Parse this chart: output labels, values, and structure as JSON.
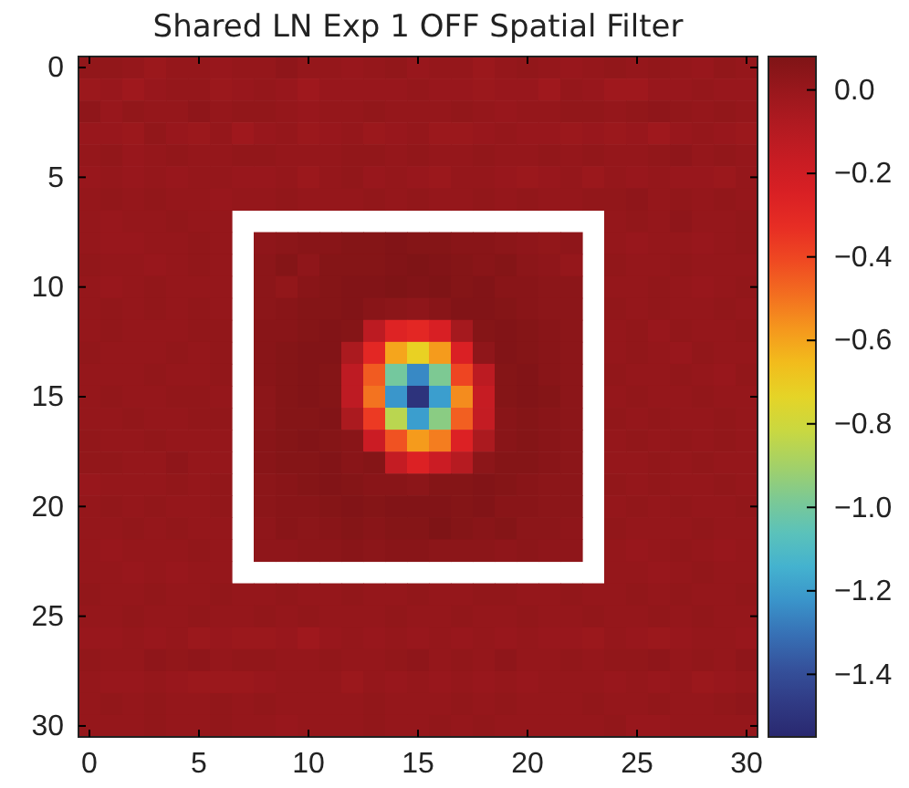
{
  "chart_data": {
    "type": "heatmap",
    "title": "Shared LN Exp 1 OFF Spatial Filter",
    "categories": [
      "0",
      null,
      null,
      null,
      null,
      "5",
      null,
      null,
      null,
      null,
      "10",
      null,
      null,
      null,
      null,
      "15",
      null,
      null,
      null,
      null,
      "20",
      null,
      null,
      null,
      null,
      "25",
      null,
      null,
      null,
      null,
      "30"
    ],
    "y_categories": [
      "0",
      null,
      null,
      null,
      null,
      "5",
      null,
      null,
      null,
      null,
      "10",
      null,
      null,
      null,
      null,
      "15",
      null,
      null,
      null,
      null,
      "20",
      null,
      null,
      null,
      null,
      "25",
      null,
      null,
      null,
      null,
      "30"
    ],
    "clim": [
      -1.55,
      0.08
    ],
    "cticks": [
      {
        "value": 0,
        "label": "0.0"
      },
      {
        "value": -0.2,
        "label": "−0.2"
      },
      {
        "value": -0.4,
        "label": "−0.4"
      },
      {
        "value": -0.6,
        "label": "−0.6"
      },
      {
        "value": -0.8,
        "label": "−0.8"
      },
      {
        "value": -1.0,
        "label": "−1.0"
      },
      {
        "value": -1.2,
        "label": "−1.2"
      },
      {
        "value": -1.4,
        "label": "−1.4"
      }
    ],
    "cells": [
      [
        0.02,
        0.02,
        0.01,
        -0.01,
        0.01,
        0.01,
        0,
        0.01,
        0.01,
        0.03,
        0.01,
        0.01,
        0,
        0.01,
        0.02,
        0,
        0.01,
        0.01,
        -0.01,
        0.01,
        0.02,
        0.01,
        0,
        0.01,
        0.02,
        0.01,
        0.02,
        0.01,
        0,
        0.02,
        0.01
      ],
      [
        -0.01,
        0,
        -0.02,
        0,
        0.01,
        0.01,
        -0.01,
        0,
        0.01,
        0,
        -0.02,
        0,
        0,
        0,
        0,
        0.01,
        0,
        0,
        -0.01,
        0,
        0,
        -0.02,
        0.01,
        0,
        -0.02,
        -0.02,
        0,
        0,
        0.01,
        0,
        0
      ],
      [
        0.03,
        0,
        0.02,
        0.01,
        0.01,
        0.03,
        0.01,
        0.02,
        0.02,
        0.01,
        0,
        0.01,
        0.01,
        0.02,
        0.01,
        0.01,
        0.01,
        0.02,
        0.01,
        0,
        0.01,
        0.01,
        0.02,
        0.02,
        0.01,
        0.02,
        0.03,
        0.02,
        0.01,
        0.02,
        0.01
      ],
      [
        0,
        0,
        -0.01,
        0.02,
        0,
        -0.01,
        0.01,
        -0.02,
        0,
        0.01,
        -0.01,
        0,
        0.01,
        -0.01,
        0,
        0.01,
        -0.01,
        -0.01,
        0,
        0.01,
        0,
        0,
        -0.01,
        0,
        -0.01,
        0,
        -0.02,
        0,
        0.01,
        0,
        -0.01
      ],
      [
        0.01,
        0.02,
        0,
        0.01,
        0.02,
        0.01,
        0.01,
        0.02,
        0.02,
        0.01,
        0.01,
        0.01,
        0.02,
        0.02,
        0.01,
        0.02,
        0.01,
        0.01,
        0.02,
        0.01,
        0.01,
        0.02,
        0.01,
        0.02,
        0.01,
        0.01,
        0.02,
        0.03,
        0.01,
        0.02,
        0.01
      ],
      [
        0,
        0.01,
        0,
        0.01,
        0,
        0.01,
        0.01,
        0,
        0,
        0.01,
        -0.01,
        0.01,
        0.02,
        0,
        0.01,
        0,
        -0.01,
        0.01,
        0.01,
        0,
        -0.01,
        0,
        0.01,
        -0.01,
        0.01,
        0,
        0.01,
        0,
        0,
        -0.01,
        0.01
      ],
      [
        0.01,
        0.02,
        0.01,
        0.02,
        0.01,
        0.01,
        0,
        0.01,
        0.01,
        0.02,
        0.01,
        0.01,
        0.01,
        0.02,
        0.01,
        0.02,
        0.01,
        0.01,
        0.02,
        0.01,
        0.02,
        0.01,
        0.01,
        0.02,
        0.02,
        0.03,
        0.01,
        0.02,
        0.01,
        0.02,
        0.01
      ],
      [
        0.01,
        0,
        0.01,
        0.01,
        0.02,
        0.01,
        0.01,
        null,
        null,
        null,
        null,
        null,
        null,
        null,
        null,
        null,
        null,
        null,
        null,
        null,
        null,
        null,
        null,
        null,
        0.01,
        0.02,
        0.01,
        0.03,
        0.01,
        0.01,
        0.02
      ],
      [
        0.01,
        0,
        0,
        0.01,
        0.01,
        0.02,
        0.01,
        null,
        0.03,
        0.04,
        0.05,
        0.05,
        0.06,
        0.06,
        0.07,
        0.06,
        0.06,
        0.05,
        0.05,
        0.04,
        0.03,
        0.02,
        0.03,
        null,
        0.01,
        0,
        0.01,
        0.01,
        0,
        0.01,
        0.02
      ],
      [
        0.02,
        0.01,
        0.01,
        0,
        0.01,
        0.02,
        0.01,
        null,
        0.04,
        0.06,
        0.03,
        0.06,
        0.06,
        0.06,
        0.07,
        0.08,
        0.07,
        0.06,
        0.05,
        0.06,
        0.04,
        0.03,
        0.01,
        null,
        0.02,
        0.01,
        0.01,
        0.02,
        0.01,
        0.01,
        0.01
      ],
      [
        0.01,
        0,
        0.01,
        0.02,
        0.01,
        0.01,
        0.01,
        null,
        0.04,
        0.02,
        0.05,
        0.06,
        0.07,
        0.07,
        0.08,
        0.07,
        0.08,
        0.06,
        0.07,
        0.05,
        0.05,
        0.04,
        0.04,
        null,
        0.01,
        0.01,
        0.02,
        0.01,
        0,
        0.01,
        0.02
      ],
      [
        0.01,
        0.02,
        0.01,
        0.02,
        0.01,
        0.02,
        0.01,
        null,
        0.04,
        0.05,
        0.06,
        0.06,
        0.07,
        0.05,
        0.04,
        0.03,
        0.05,
        0.07,
        0.07,
        0.06,
        0.05,
        0.04,
        0.04,
        null,
        0.02,
        0.01,
        0.02,
        0.01,
        0.01,
        0.02,
        0.01
      ],
      [
        0.01,
        0.02,
        0.01,
        0.01,
        0.01,
        0.02,
        0.02,
        null,
        0.05,
        0.05,
        0.06,
        0.07,
        0.06,
        -0.12,
        -0.27,
        -0.3,
        -0.24,
        -0.04,
        0.06,
        0.07,
        0.06,
        0.05,
        0.04,
        null,
        0.01,
        0.02,
        0,
        0.02,
        0.01,
        0.01,
        0.02
      ],
      [
        0.02,
        0.01,
        0.01,
        0.01,
        0.02,
        0.01,
        0.02,
        null,
        0.05,
        0.06,
        0.07,
        0.07,
        -0.06,
        -0.3,
        -0.6,
        -0.72,
        -0.58,
        -0.25,
        0.03,
        0.07,
        0.06,
        0.05,
        0.04,
        null,
        0.01,
        0.02,
        0.01,
        0,
        0.02,
        0.01,
        0.01
      ],
      [
        0.01,
        0.01,
        0.01,
        0.02,
        0.01,
        0.01,
        0.02,
        null,
        0.05,
        0.06,
        0.07,
        0.06,
        -0.13,
        -0.45,
        -1.0,
        -1.25,
        -0.98,
        -0.4,
        -0.12,
        0.06,
        0.07,
        0.05,
        0.04,
        null,
        0.02,
        0.01,
        0.01,
        0.02,
        0.01,
        0,
        0.02
      ],
      [
        0.01,
        0.02,
        0.01,
        0.01,
        0.02,
        0.02,
        0.01,
        null,
        0.04,
        0.06,
        0.07,
        0.06,
        -0.13,
        -0.5,
        -1.22,
        -1.5,
        -1.2,
        -0.55,
        -0.16,
        0.06,
        0.07,
        0.06,
        0.04,
        null,
        0.01,
        0.02,
        0.01,
        0.01,
        0.02,
        0.01,
        0.01
      ],
      [
        0.01,
        0.01,
        0.02,
        0.01,
        0.01,
        0.02,
        0.02,
        null,
        0.04,
        0.06,
        0.06,
        0.07,
        -0.06,
        -0.37,
        -0.85,
        -1.2,
        -0.95,
        -0.46,
        -0.15,
        0.05,
        0.06,
        0.05,
        0.04,
        null,
        0.02,
        0.01,
        0.02,
        0.01,
        0.01,
        0.02,
        0.01
      ],
      [
        0.02,
        0.01,
        0.01,
        0.02,
        0.01,
        0.01,
        0.01,
        null,
        0.05,
        0.06,
        0.07,
        0.06,
        0.05,
        -0.18,
        -0.43,
        -0.58,
        -0.52,
        -0.26,
        -0.06,
        0.05,
        0.06,
        0.05,
        0.04,
        null,
        0.01,
        0.02,
        0.01,
        0.02,
        0.01,
        0.02,
        0.01
      ],
      [
        0.02,
        0.02,
        0.01,
        0.01,
        0.03,
        0.01,
        0.01,
        null,
        0.05,
        0.06,
        0.06,
        0.07,
        0.05,
        0.06,
        -0.15,
        -0.26,
        -0.18,
        -0.1,
        0.04,
        0.06,
        0.06,
        0.05,
        0.04,
        null,
        0.01,
        0.01,
        0.02,
        0.01,
        0.02,
        0.01,
        0.01
      ],
      [
        0,
        0.01,
        0.01,
        0.01,
        0.02,
        0.01,
        0.02,
        null,
        0.04,
        0.05,
        0.06,
        0.07,
        0.06,
        0.05,
        0.05,
        0.04,
        0.06,
        0.06,
        0.07,
        0.06,
        0.05,
        0.04,
        0.04,
        null,
        0.02,
        0.01,
        0.02,
        0.01,
        0.01,
        0.02,
        0.01
      ],
      [
        0.01,
        0.02,
        0.01,
        0.02,
        0.01,
        0.01,
        0.02,
        null,
        0.04,
        0.05,
        0.05,
        0.06,
        0.07,
        0.06,
        0.07,
        0.07,
        0.07,
        0.06,
        0.07,
        0.05,
        0.05,
        0.04,
        0.04,
        null,
        0.01,
        0.02,
        0.01,
        0.02,
        0.01,
        0.01,
        0.02
      ],
      [
        0.01,
        0.01,
        0.02,
        0.01,
        0.02,
        0.01,
        0.01,
        null,
        0.03,
        0.05,
        0.04,
        0.05,
        0.06,
        0.05,
        0.06,
        0.06,
        0.08,
        0.06,
        0.05,
        0.06,
        0.04,
        0.04,
        0.03,
        null,
        0.02,
        0.01,
        0.01,
        0.01,
        0.02,
        0.01,
        0.01
      ],
      [
        0.01,
        0,
        0.01,
        0.01,
        0.01,
        0.02,
        0.01,
        null,
        0.03,
        0.03,
        0.04,
        0.04,
        0.05,
        0.04,
        0.05,
        0.05,
        0.04,
        0.04,
        0.04,
        0.03,
        0.04,
        0.03,
        0.03,
        null,
        0.01,
        0,
        0.01,
        0.02,
        0.01,
        0,
        0.01
      ],
      [
        0.01,
        0.01,
        0,
        0.01,
        0,
        0.01,
        0.01,
        null,
        null,
        null,
        null,
        null,
        null,
        null,
        null,
        null,
        null,
        null,
        null,
        null,
        null,
        null,
        null,
        null,
        0.01,
        0.01,
        0,
        0.01,
        0.02,
        0.01,
        0.01
      ],
      [
        0.02,
        0.01,
        0.01,
        0.02,
        0.01,
        0.01,
        0.02,
        0.01,
        0.01,
        0.02,
        0.01,
        0.01,
        0.02,
        0.01,
        0.01,
        0.02,
        0.01,
        0.01,
        0.02,
        0.02,
        0.01,
        0.01,
        0.02,
        0.01,
        0.01,
        0.02,
        0.01,
        0.02,
        0.01,
        0.01,
        0.02
      ],
      [
        0.01,
        0.01,
        0.02,
        0.01,
        0.01,
        0.02,
        0.01,
        0.01,
        0.02,
        0.01,
        0.02,
        0.01,
        0.01,
        0.01,
        0.02,
        0.01,
        0.01,
        0.02,
        0.01,
        0.01,
        0.02,
        0.01,
        0.01,
        0.02,
        0.01,
        0.01,
        0.02,
        0.01,
        0.02,
        0.01,
        0.01
      ],
      [
        0,
        0,
        0.01,
        0,
        0.01,
        -0.01,
        0,
        -0.01,
        -0.01,
        0,
        -0.02,
        0,
        0.01,
        0,
        0.01,
        0,
        0.01,
        0,
        0.01,
        0,
        0.01,
        0,
        0,
        -0.01,
        0.01,
        0,
        -0.01,
        0,
        0.01,
        0.01,
        0
      ],
      [
        0.02,
        0.01,
        0.01,
        0.03,
        0.02,
        0.03,
        0.01,
        0.02,
        0.02,
        0.01,
        0.01,
        0.02,
        0.01,
        0.01,
        0.02,
        0.03,
        0.01,
        0.02,
        0.01,
        0.03,
        0.01,
        0.01,
        0.02,
        0.01,
        0.02,
        0.02,
        0.03,
        0.01,
        0.02,
        0.01,
        0.03
      ],
      [
        0.01,
        0,
        0,
        0.01,
        0,
        -0.01,
        -0.01,
        -0.01,
        0,
        0.01,
        0.01,
        0.01,
        -0.01,
        0.01,
        0,
        0.01,
        0,
        0.01,
        0,
        0.01,
        0,
        0.01,
        0.01,
        0.01,
        0,
        0.01,
        0,
        0.01,
        -0.01,
        0,
        0.01
      ],
      [
        0.01,
        0.02,
        0.01,
        0.02,
        0.01,
        0.01,
        0.02,
        0.01,
        0.02,
        0.01,
        0.01,
        0.01,
        0.01,
        0.02,
        0.01,
        0.01,
        0.01,
        0.02,
        0.01,
        0.02,
        0.01,
        0.01,
        0.01,
        0.02,
        0.01,
        0.01,
        0.02,
        0.01,
        0.01,
        0.02,
        0.03
      ],
      [
        0.01,
        0.01,
        0.01,
        0.02,
        0.01,
        0.01,
        0.02,
        0.01,
        0.01,
        0,
        0.01,
        0.01,
        0.01,
        0.02,
        0.01,
        0.01,
        0.02,
        0.01,
        0.02,
        0.01,
        0.01,
        0.01,
        0.01,
        0.01,
        0.02,
        0,
        0,
        0.01,
        0.01,
        0.01,
        0.01
      ]
    ]
  }
}
